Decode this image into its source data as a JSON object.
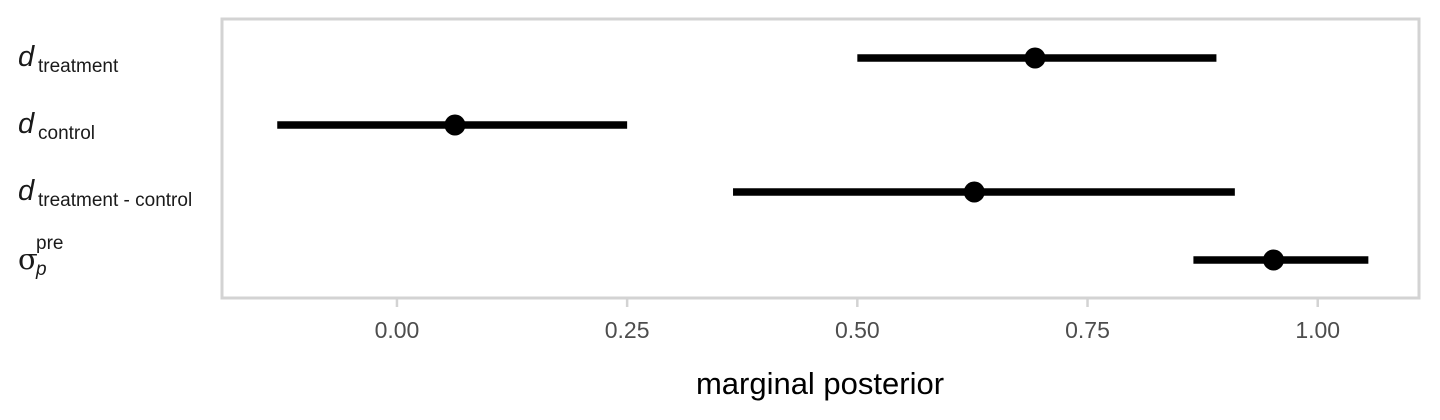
{
  "chart_data": {
    "type": "interval",
    "xlabel": "marginal posterior",
    "ylabel": "",
    "xlim": [
      -0.19,
      1.11
    ],
    "x_ticks": [
      0.0,
      0.25,
      0.5,
      0.75,
      1.0
    ],
    "x_tick_labels": [
      "0.00",
      "0.25",
      "0.50",
      "0.75",
      "1.00"
    ],
    "grid": false,
    "colors": {
      "mark": "#000000",
      "panel_border": "#d3d3d3",
      "tick_label": "#4d4d4d"
    },
    "rows": [
      {
        "label": {
          "main": "d",
          "sub": "treatment",
          "sup": ""
        },
        "lower": 0.5,
        "estimate": 0.693,
        "upper": 0.89
      },
      {
        "label": {
          "main": "d",
          "sub": "control",
          "sup": ""
        },
        "lower": -0.13,
        "estimate": 0.063,
        "upper": 0.25
      },
      {
        "label": {
          "main": "d",
          "sub": "treatment - control",
          "sup": ""
        },
        "lower": 0.365,
        "estimate": 0.627,
        "upper": 0.91
      },
      {
        "label": {
          "main": "σ",
          "sub": "p",
          "sup": "pre"
        },
        "lower": 0.865,
        "estimate": 0.952,
        "upper": 1.055
      }
    ]
  }
}
